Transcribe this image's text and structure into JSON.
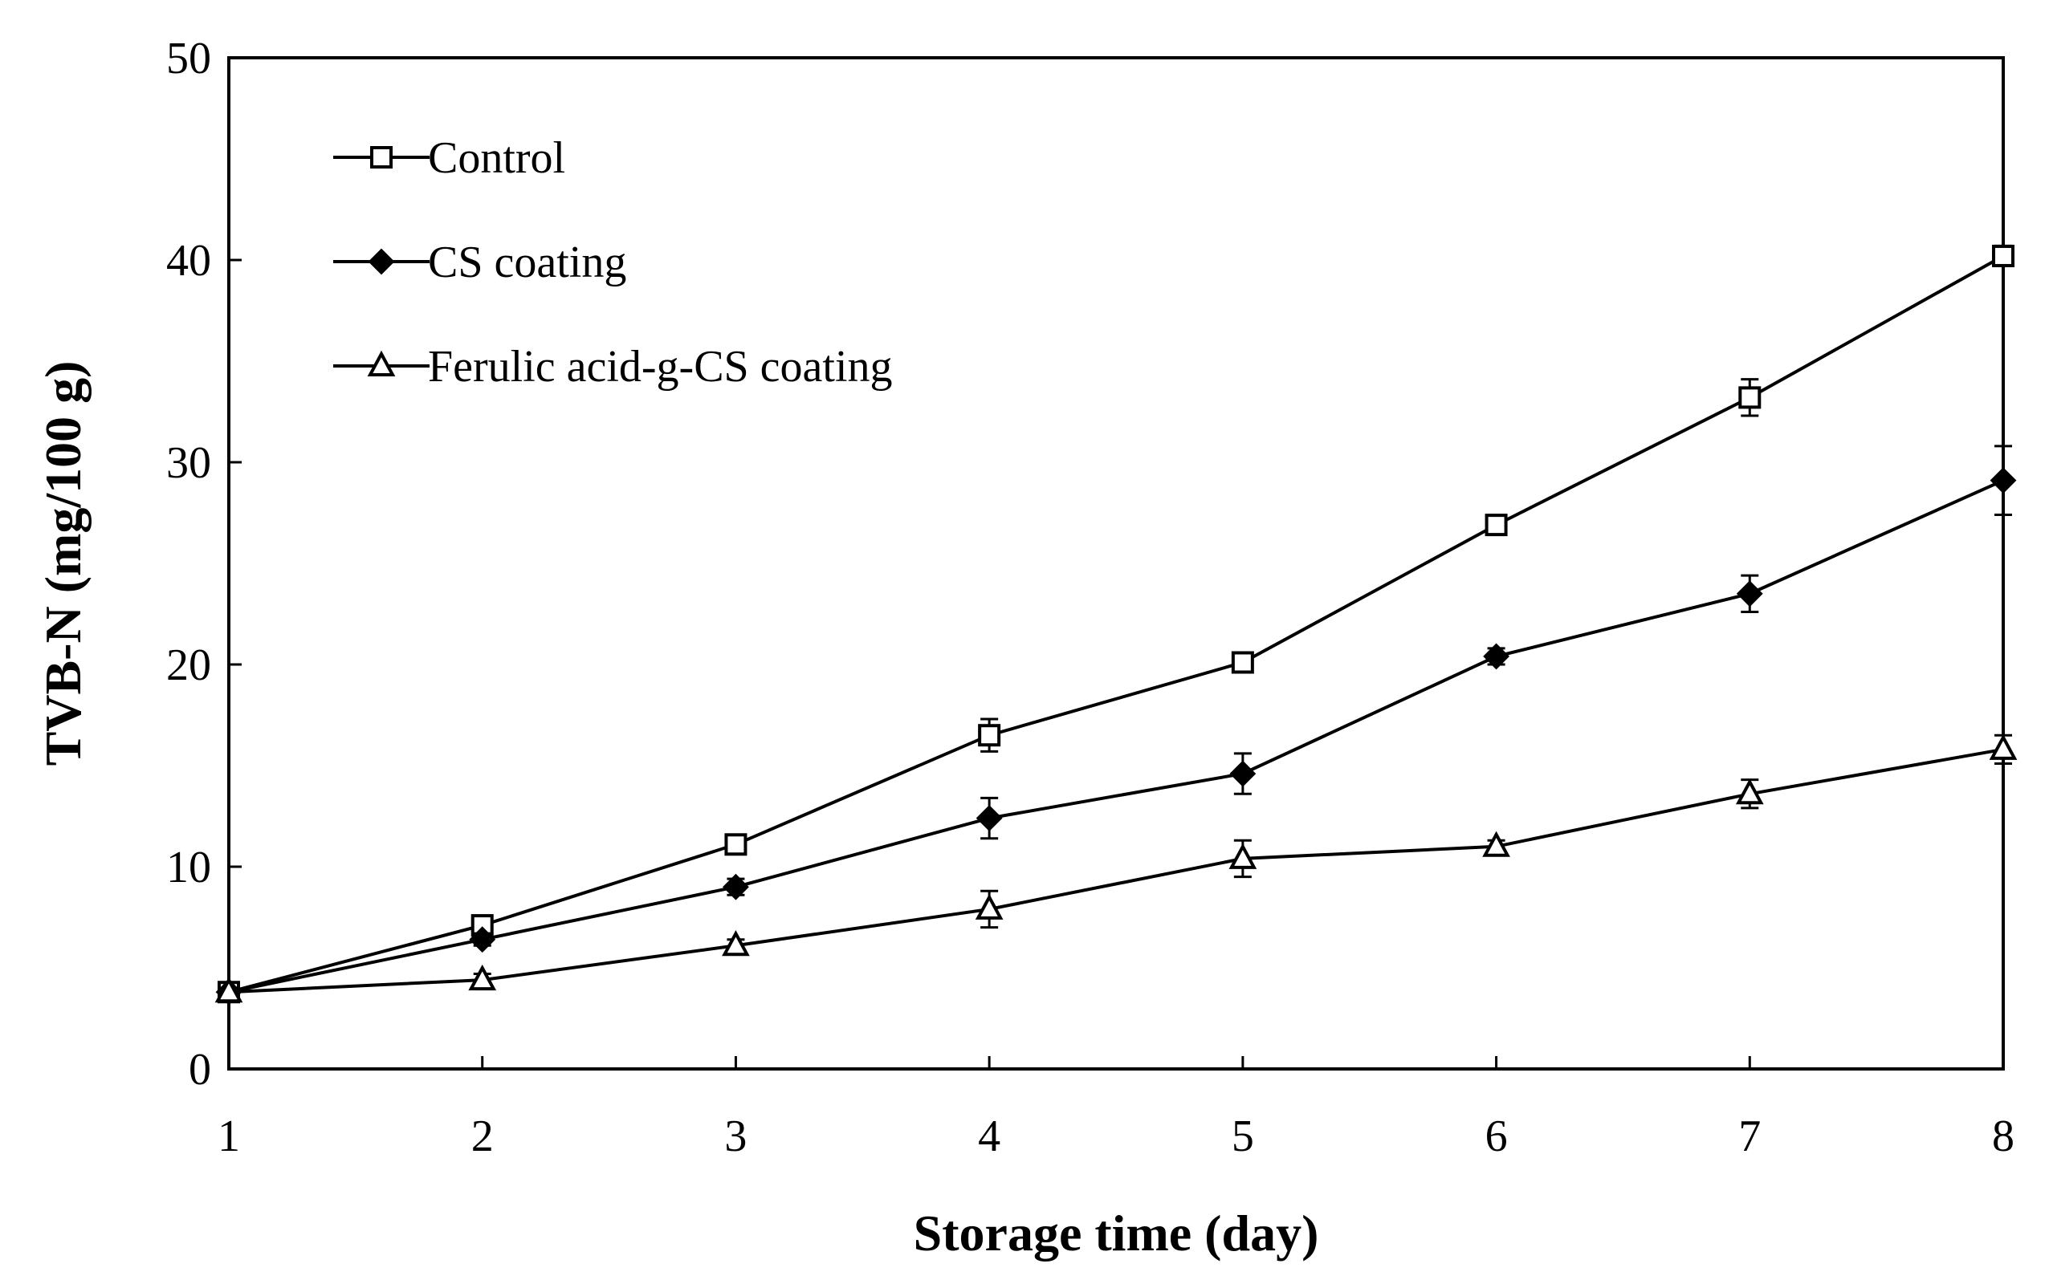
{
  "chart_data": {
    "type": "line",
    "title": "",
    "xlabel": "Storage time (day)",
    "ylabel": "TVB-N (mg/100 g)",
    "x": [
      1,
      2,
      3,
      4,
      5,
      6,
      7,
      8
    ],
    "xlim": [
      1,
      8
    ],
    "ylim": [
      0,
      50
    ],
    "xticks": [
      "1",
      "2",
      "3",
      "4",
      "5",
      "6",
      "7",
      "8"
    ],
    "yticks": [
      "0",
      "10",
      "20",
      "30",
      "40",
      "50"
    ],
    "grid": false,
    "legend_position": "top-left",
    "series": [
      {
        "name": "Control",
        "marker": "open-square",
        "values": [
          3.8,
          7.1,
          11.1,
          16.5,
          20.1,
          26.9,
          33.2,
          40.2
        ],
        "errors": [
          0.2,
          0.3,
          0.4,
          0.8,
          0.4,
          0.4,
          0.9,
          0.5
        ]
      },
      {
        "name": "CS coating",
        "marker": "filled-diamond",
        "values": [
          3.8,
          6.4,
          9.0,
          12.4,
          14.6,
          20.4,
          23.5,
          29.1
        ],
        "errors": [
          0.2,
          0.3,
          0.4,
          1.0,
          1.0,
          0.4,
          0.9,
          1.7
        ]
      },
      {
        "name": "Ferulic acid-g-CS coating",
        "marker": "open-triangle",
        "values": [
          3.8,
          4.4,
          6.1,
          7.9,
          10.4,
          11.0,
          13.6,
          15.8
        ],
        "errors": [
          0.2,
          0.3,
          0.3,
          0.9,
          0.9,
          0.3,
          0.7,
          0.7
        ]
      }
    ],
    "colors": {
      "line": "#000000",
      "background": "#ffffff"
    }
  }
}
